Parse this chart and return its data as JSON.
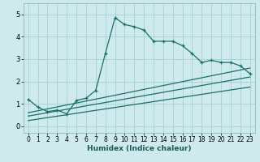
{
  "xlabel": "Humidex (Indice chaleur)",
  "bg_color": "#ceeaec",
  "grid_color": "#a8d4d8",
  "line_color": "#1a6e6a",
  "xlim": [
    -0.5,
    23.5
  ],
  "ylim": [
    -0.3,
    5.5
  ],
  "xticks": [
    0,
    1,
    2,
    3,
    4,
    5,
    6,
    7,
    8,
    9,
    10,
    11,
    12,
    13,
    14,
    15,
    16,
    17,
    18,
    19,
    20,
    21,
    22,
    23
  ],
  "yticks": [
    0,
    1,
    2,
    3,
    4,
    5
  ],
  "main_x": [
    0,
    1,
    2,
    3,
    4,
    5,
    6,
    7,
    8,
    9,
    10,
    11,
    12,
    13,
    14,
    15,
    16,
    17,
    18,
    19,
    20,
    21,
    22,
    23
  ],
  "main_y": [
    1.2,
    0.85,
    0.65,
    0.72,
    0.55,
    1.15,
    1.25,
    1.6,
    3.25,
    4.85,
    4.55,
    4.45,
    4.3,
    3.8,
    3.8,
    3.8,
    3.6,
    3.25,
    2.85,
    2.95,
    2.85,
    2.85,
    2.7,
    2.35
  ],
  "line1_x": [
    0,
    23
  ],
  "line1_y": [
    0.6,
    2.6
  ],
  "line2_x": [
    0,
    23
  ],
  "line2_y": [
    0.45,
    2.2
  ],
  "line3_x": [
    0,
    23
  ],
  "line3_y": [
    0.25,
    1.75
  ]
}
